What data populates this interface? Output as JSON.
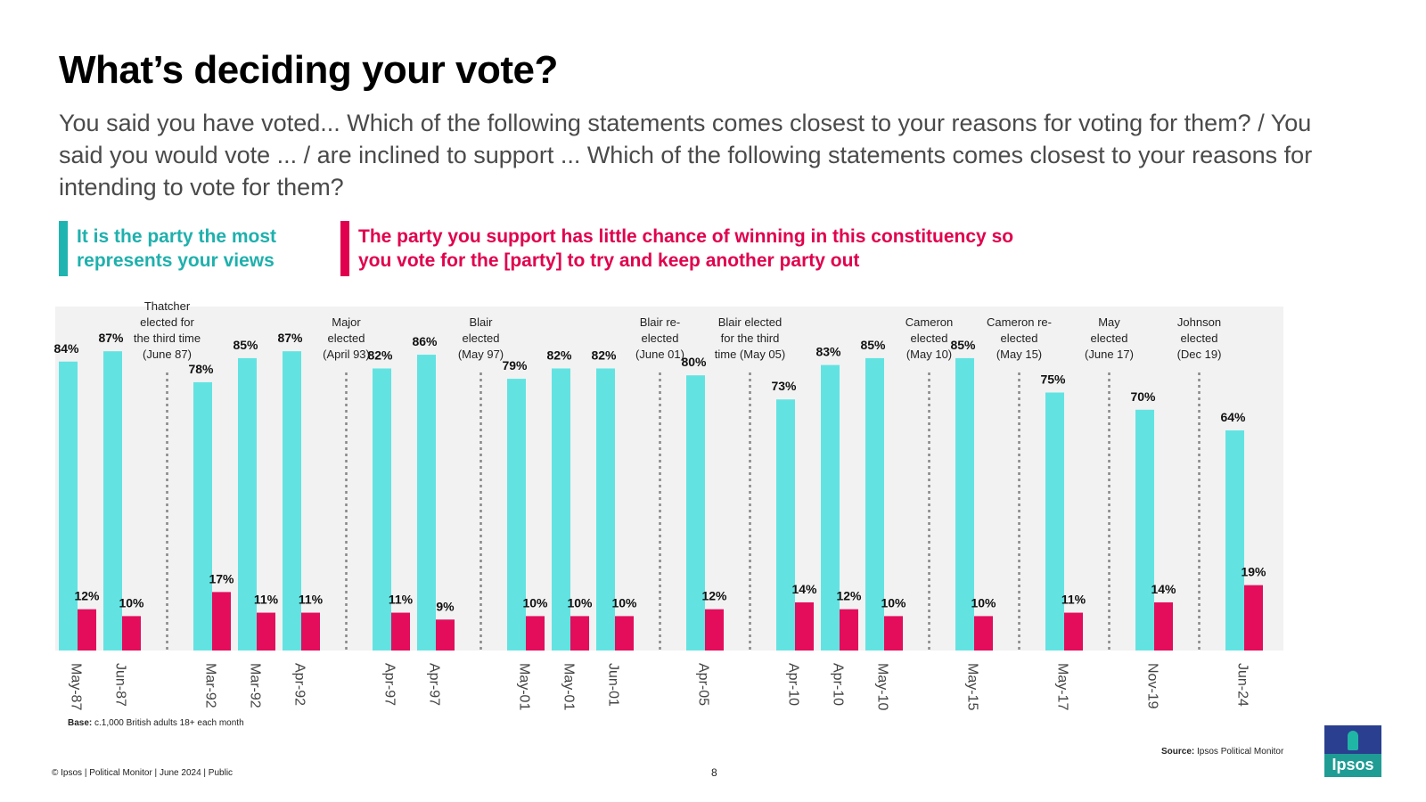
{
  "title": "What’s deciding your vote?",
  "subtitle": "You said you have voted... Which of the following statements comes closest to your reasons for voting for them? / You said you would vote ... / are inclined to support ... Which of the following statements comes closest to your reasons for intending to vote for them?",
  "legend": {
    "series_a": "It is the party the most represents your views",
    "series_b": "The party you support has little chance of winning in this constituency so you vote for the [party] to try and keep another party out"
  },
  "colors": {
    "series_a": "#62e3e2",
    "series_b": "#e30d5c",
    "legend_a": "#20b4b0",
    "legend_b": "#e0004d",
    "plot_bg": "#f2f2f2"
  },
  "chart_data": {
    "type": "bar",
    "title": "What’s deciding your vote?",
    "ylim": [
      0,
      100
    ],
    "categories": [
      "May-87",
      "Jun-87",
      "Mar-92",
      "Mar-92",
      "Apr-92",
      "Apr-97",
      "Apr-97",
      "May-01",
      "May-01",
      "Jun-01",
      "Apr-05",
      "Apr-10",
      "Apr-10",
      "May-10",
      "May-15",
      "May-17",
      "Nov-19",
      "Jun-24"
    ],
    "series": [
      {
        "name": "It is the party the most represents your views",
        "values": [
          84,
          87,
          78,
          85,
          87,
          82,
          86,
          79,
          82,
          82,
          80,
          73,
          83,
          85,
          85,
          75,
          70,
          64
        ]
      },
      {
        "name": "The party you support has little chance of winning in this constituency so you vote for the [party] to try and keep another party out",
        "values": [
          12,
          10,
          17,
          11,
          11,
          11,
          9,
          10,
          10,
          10,
          12,
          14,
          12,
          10,
          10,
          11,
          14,
          19
        ]
      }
    ],
    "value_suffix": "%",
    "annotations": [
      {
        "after_category_index": 1,
        "lines": [
          "Thatcher",
          "elected for",
          "the third time",
          "(June 87)"
        ]
      },
      {
        "after_category_index": 4,
        "lines": [
          "Major",
          "elected",
          "(April 93)"
        ]
      },
      {
        "after_category_index": 6,
        "lines": [
          "Blair",
          "elected",
          "(May 97)"
        ]
      },
      {
        "after_category_index": 9,
        "lines": [
          "Blair re-",
          "elected",
          "(June 01)"
        ]
      },
      {
        "after_category_index": 10,
        "lines": [
          "Blair elected",
          "for the third",
          "time (May 05)"
        ]
      },
      {
        "after_category_index": 13,
        "lines": [
          "Cameron",
          "elected",
          "(May 10)"
        ]
      },
      {
        "after_category_index": 14,
        "lines": [
          "Cameron re-",
          "elected",
          "(May 15)"
        ]
      },
      {
        "after_category_index": 15,
        "lines": [
          "May",
          "elected",
          "(June 17)"
        ]
      },
      {
        "after_category_index": 16,
        "lines": [
          "Johnson",
          "elected",
          "(Dec 19)"
        ]
      }
    ]
  },
  "footer": {
    "base_label": "Base:",
    "base_text": "c.1,000 British adults 18+ each month",
    "source_label": "Source:",
    "source_text": "Ipsos Political Monitor",
    "copyright": "© Ipsos | Political Monitor | June 2024 | Public",
    "page_number": "8",
    "logo_text": "Ipsos"
  }
}
